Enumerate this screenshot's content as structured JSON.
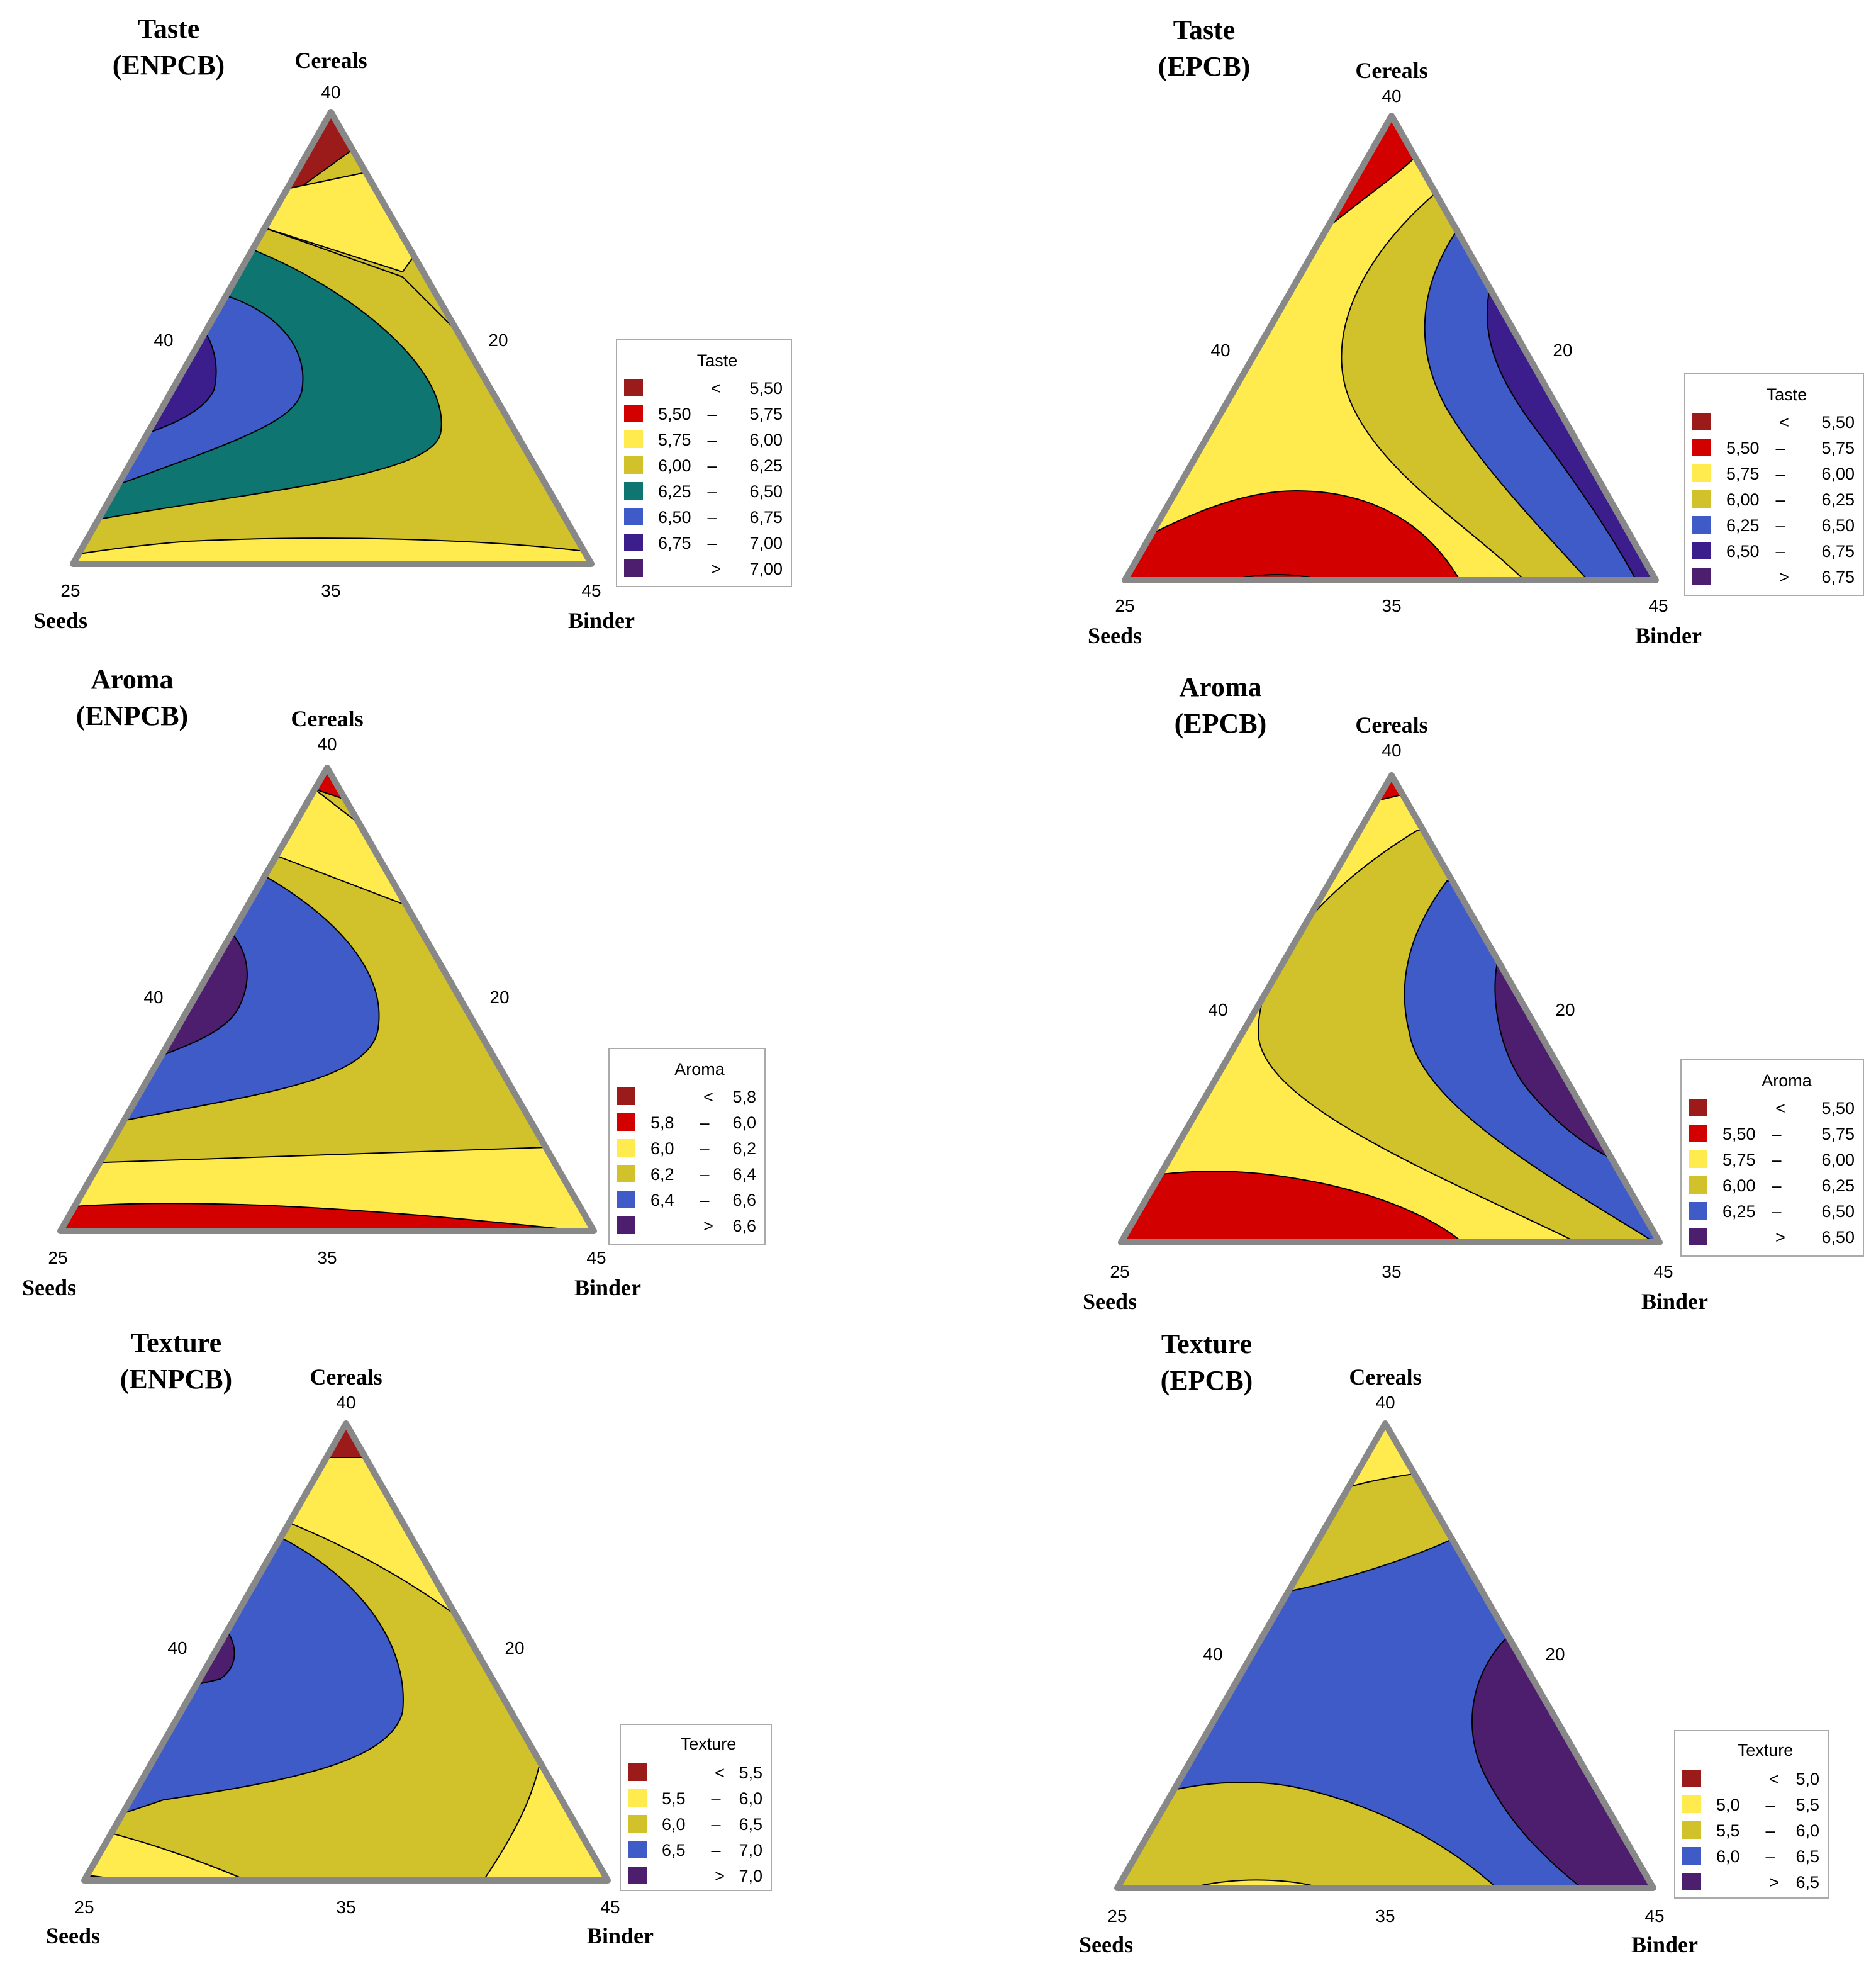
{
  "chart_data": [
    {
      "type": "contour",
      "title_line1": "Taste",
      "title_line2": "(ENPCB)",
      "axes": {
        "top": "Cereals",
        "left": "Seeds",
        "right": "Binder"
      },
      "ticks": {
        "top": "40",
        "left": "25",
        "bottom_mid": "35",
        "right": "45",
        "left_mid": "40",
        "right_mid": "20"
      },
      "legend": {
        "title": "Taste",
        "entries": [
          {
            "lo": "",
            "sep": "<",
            "hi": "5,50",
            "color": "#9b1b1b"
          },
          {
            "lo": "5,50",
            "sep": "–",
            "hi": "5,75",
            "color": "#d30000"
          },
          {
            "lo": "5,75",
            "sep": "–",
            "hi": "6,00",
            "color": "#ffeb4d"
          },
          {
            "lo": "6,00",
            "sep": "–",
            "hi": "6,25",
            "color": "#d1c12a"
          },
          {
            "lo": "6,25",
            "sep": "–",
            "hi": "6,50",
            "color": "#0f7570"
          },
          {
            "lo": "6,50",
            "sep": "–",
            "hi": "6,75",
            "color": "#3f5bc8"
          },
          {
            "lo": "6,75",
            "sep": "–",
            "hi": "7,00",
            "color": "#3b1d8c"
          },
          {
            "lo": "",
            "sep": ">",
            "hi": "7,00",
            "color": "#4e1e6e"
          }
        ]
      }
    },
    {
      "type": "contour",
      "title_line1": "Taste",
      "title_line2": "(EPCB)",
      "axes": {
        "top": "Cereals",
        "left": "Seeds",
        "right": "Binder"
      },
      "ticks": {
        "top": "40",
        "left": "25",
        "bottom_mid": "35",
        "right": "45",
        "left_mid": "40",
        "right_mid": "20"
      },
      "legend": {
        "title": "Taste",
        "entries": [
          {
            "lo": "",
            "sep": "<",
            "hi": "5,50",
            "color": "#9b1b1b"
          },
          {
            "lo": "5,50",
            "sep": "–",
            "hi": "5,75",
            "color": "#d30000"
          },
          {
            "lo": "5,75",
            "sep": "–",
            "hi": "6,00",
            "color": "#ffeb4d"
          },
          {
            "lo": "6,00",
            "sep": "–",
            "hi": "6,25",
            "color": "#d1c12a"
          },
          {
            "lo": "6,25",
            "sep": "–",
            "hi": "6,50",
            "color": "#3f5bc8"
          },
          {
            "lo": "6,50",
            "sep": "–",
            "hi": "6,75",
            "color": "#3b1d8c"
          },
          {
            "lo": "",
            "sep": ">",
            "hi": "6,75",
            "color": "#4e1e6e"
          }
        ]
      }
    },
    {
      "type": "contour",
      "title_line1": "Aroma",
      "title_line2": "(ENPCB)",
      "axes": {
        "top": "Cereals",
        "left": "Seeds",
        "right": "Binder"
      },
      "ticks": {
        "top": "40",
        "left": "25",
        "bottom_mid": "35",
        "right": "45",
        "left_mid": "40",
        "right_mid": "20"
      },
      "legend": {
        "title": "Aroma",
        "entries": [
          {
            "lo": "",
            "sep": "<",
            "hi": "5,8",
            "color": "#9b1b1b"
          },
          {
            "lo": "5,8",
            "sep": "–",
            "hi": "6,0",
            "color": "#d30000"
          },
          {
            "lo": "6,0",
            "sep": "–",
            "hi": "6,2",
            "color": "#ffeb4d"
          },
          {
            "lo": "6,2",
            "sep": "–",
            "hi": "6,4",
            "color": "#d1c12a"
          },
          {
            "lo": "6,4",
            "sep": "–",
            "hi": "6,6",
            "color": "#3f5bc8"
          },
          {
            "lo": "",
            "sep": ">",
            "hi": "6,6",
            "color": "#4e1e6e"
          }
        ]
      }
    },
    {
      "type": "contour",
      "title_line1": "Aroma",
      "title_line2": "(EPCB)",
      "axes": {
        "top": "Cereals",
        "left": "Seeds",
        "right": "Binder"
      },
      "ticks": {
        "top": "40",
        "left": "25",
        "bottom_mid": "35",
        "right": "45",
        "left_mid": "40",
        "right_mid": "20"
      },
      "legend": {
        "title": "Aroma",
        "entries": [
          {
            "lo": "",
            "sep": "<",
            "hi": "5,50",
            "color": "#9b1b1b"
          },
          {
            "lo": "5,50",
            "sep": "–",
            "hi": "5,75",
            "color": "#d30000"
          },
          {
            "lo": "5,75",
            "sep": "–",
            "hi": "6,00",
            "color": "#ffeb4d"
          },
          {
            "lo": "6,00",
            "sep": "–",
            "hi": "6,25",
            "color": "#d1c12a"
          },
          {
            "lo": "6,25",
            "sep": "–",
            "hi": "6,50",
            "color": "#3f5bc8"
          },
          {
            "lo": "",
            "sep": ">",
            "hi": "6,50",
            "color": "#4e1e6e"
          }
        ]
      }
    },
    {
      "type": "contour",
      "title_line1": "Texture",
      "title_line2": "(ENPCB)",
      "axes": {
        "top": "Cereals",
        "left": "Seeds",
        "right": "Binder"
      },
      "ticks": {
        "top": "40",
        "left": "25",
        "bottom_mid": "35",
        "right": "45",
        "left_mid": "40",
        "right_mid": "20"
      },
      "legend": {
        "title": "Texture",
        "entries": [
          {
            "lo": "",
            "sep": "<",
            "hi": "5,5",
            "color": "#9b1b1b"
          },
          {
            "lo": "5,5",
            "sep": "–",
            "hi": "6,0",
            "color": "#ffeb4d"
          },
          {
            "lo": "6,0",
            "sep": "–",
            "hi": "6,5",
            "color": "#d1c12a"
          },
          {
            "lo": "6,5",
            "sep": "–",
            "hi": "7,0",
            "color": "#3f5bc8"
          },
          {
            "lo": "",
            "sep": ">",
            "hi": "7,0",
            "color": "#4e1e6e"
          }
        ]
      }
    },
    {
      "type": "contour",
      "title_line1": "Texture",
      "title_line2": "(EPCB)",
      "axes": {
        "top": "Cereals",
        "left": "Seeds",
        "right": "Binder"
      },
      "ticks": {
        "top": "40",
        "left": "25",
        "bottom_mid": "35",
        "right": "45",
        "left_mid": "40",
        "right_mid": "20"
      },
      "legend": {
        "title": "Texture",
        "entries": [
          {
            "lo": "",
            "sep": "<",
            "hi": "5,0",
            "color": "#9b1b1b"
          },
          {
            "lo": "5,0",
            "sep": "–",
            "hi": "5,5",
            "color": "#ffeb4d"
          },
          {
            "lo": "5,5",
            "sep": "–",
            "hi": "6,0",
            "color": "#d1c12a"
          },
          {
            "lo": "6,0",
            "sep": "–",
            "hi": "6,5",
            "color": "#3f5bc8"
          },
          {
            "lo": "",
            "sep": ">",
            "hi": "6,5",
            "color": "#4e1e6e"
          }
        ]
      }
    }
  ]
}
